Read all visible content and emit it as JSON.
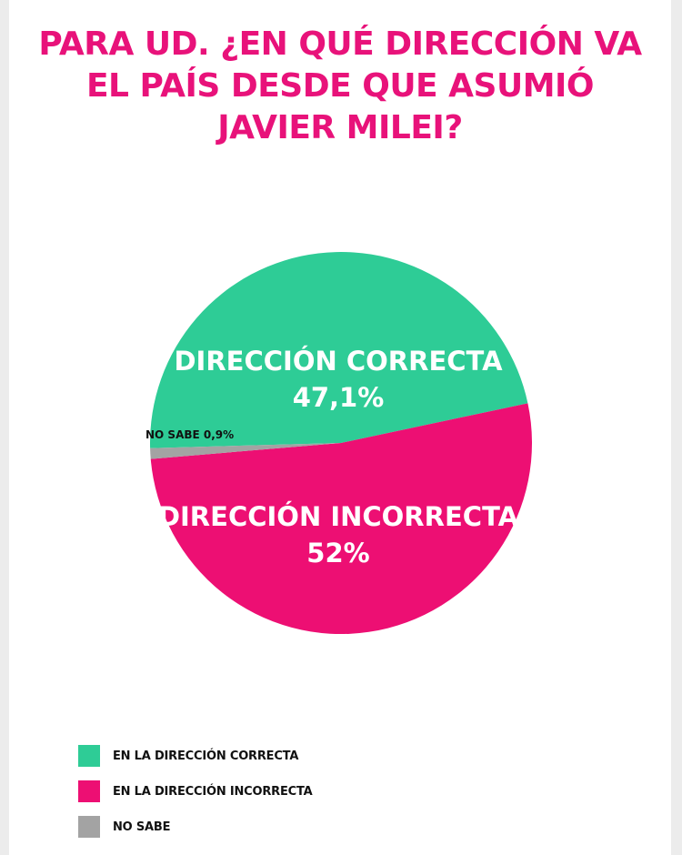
{
  "chart_data": {
    "type": "pie",
    "title_lines": [
      "PARA UD. ¿EN QUÉ DIRECCIÓN VA",
      "EL PAÍS DESDE QUE ASUMIÓ",
      "JAVIER MILEI?"
    ],
    "slices": [
      {
        "name": "DIRECCIÓN CORRECTA",
        "value": 47.1,
        "value_label": "47,1%",
        "legend": "EN LA DIRECCIÓN CORRECTA",
        "color": "#2ecc96"
      },
      {
        "name": "DIRECCIÓN INCORRECTA",
        "value": 52,
        "value_label": "52%",
        "legend": "EN LA DIRECCIÓN INCORRECTA",
        "color": "#ed0f73"
      },
      {
        "name": "NO SABE",
        "value": 0.9,
        "value_label": "0,9%",
        "legend": "NO SABE",
        "color": "#a3a3a3"
      }
    ],
    "small_label": "NO SABE 0,9%",
    "legend_position": "bottom-left"
  }
}
